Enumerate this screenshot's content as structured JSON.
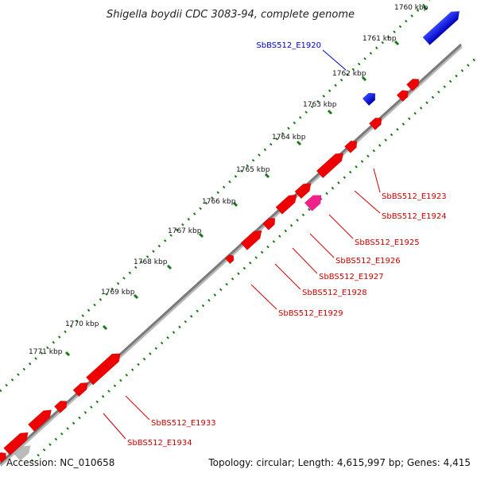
{
  "title": "Shigella boydii CDC 3083-94, complete genome",
  "footer": {
    "accession": "Accession: NC_010658",
    "summary": "Topology: circular; Length: 4,615,997 bp; Genes: 4,415"
  },
  "colors": {
    "backbone": "#808080",
    "tick": "#1a7a1a",
    "gene_forward": "#ee0000",
    "gene_highlight": "#ee2288",
    "gene_blue": "#0000dd",
    "gene_grey": "#bbbbbb",
    "label_red": "#cc0000",
    "label_blue": "#0000cc"
  },
  "kbp_labels": [
    "1760 kbp",
    "1761 kbp",
    "1762 kbp",
    "1763 kbp",
    "1764 kbp",
    "1765 kbp",
    "1766 kbp",
    "1767 kbp",
    "1768 kbp",
    "1769 kbp",
    "1770 kbp",
    "1771 kbp"
  ],
  "gene_labels": [
    {
      "text": "SbBS512_E1920",
      "color": "blue"
    },
    {
      "text": "SbBS512_E1923",
      "color": "red"
    },
    {
      "text": "SbBS512_E1924",
      "color": "red"
    },
    {
      "text": "SbBS512_E1925",
      "color": "red"
    },
    {
      "text": "SbBS512_E1926",
      "color": "red"
    },
    {
      "text": "SbBS512_E1927",
      "color": "red"
    },
    {
      "text": "SbBS512_E1928",
      "color": "red"
    },
    {
      "text": "SbBS512_E1929",
      "color": "red"
    },
    {
      "text": "SbBS512_E1933",
      "color": "red"
    },
    {
      "text": "SbBS512_E1934",
      "color": "red"
    }
  ]
}
